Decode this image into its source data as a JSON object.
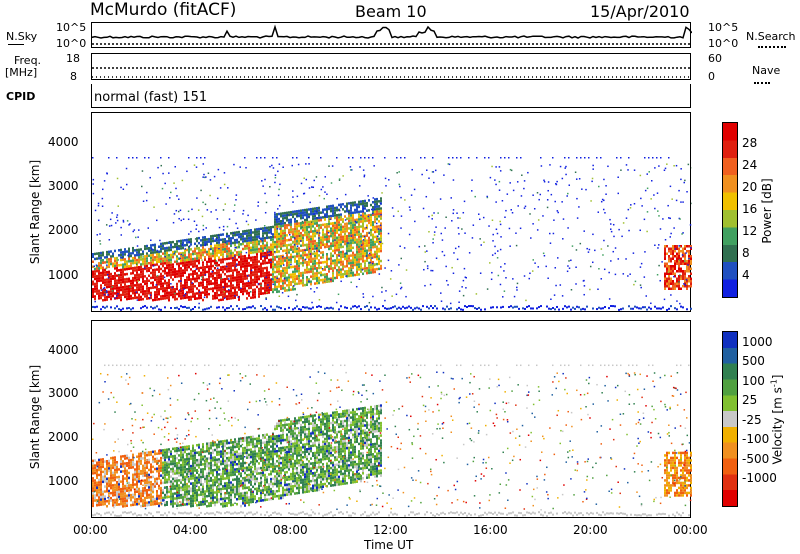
{
  "header": {
    "station": "McMurdo (fitACF)",
    "beam": "Beam 10",
    "date": "15/Apr/2010"
  },
  "top_panels": {
    "nsky_label": "N.Sky",
    "nsky_ticks": [
      "10^5",
      "10^0"
    ],
    "nsky_right_ticks": [
      "10^5",
      "10^0"
    ],
    "nsearch_label": "N.Search",
    "freq_label": "Freq.",
    "freq_unit": "[MHz]",
    "freq_ticks": [
      "18",
      "8"
    ],
    "nave_ticks": [
      "60",
      "0"
    ],
    "nave_label": "Nave",
    "cpid_label": "CPID",
    "cpid_value": "normal (fast) 151"
  },
  "chart_data": [
    {
      "type": "heatmap",
      "name": "power",
      "ylabel": "Slant Range [km]",
      "yticks": [
        1000,
        2000,
        3000,
        4000
      ],
      "ylim": [
        180,
        4700
      ],
      "xlim": [
        0,
        24
      ],
      "colorbar": {
        "label": "Power [dB]",
        "ticks": [
          "4",
          "8",
          "12",
          "16",
          "20",
          "24",
          "28"
        ],
        "colors": [
          "#1020e0",
          "#2050c0",
          "#307050",
          "#40a060",
          "#a0c030",
          "#f0c000",
          "#f09020",
          "#f06020",
          "#e02010",
          "#e00000"
        ]
      }
    },
    {
      "type": "heatmap",
      "name": "velocity",
      "ylabel": "Slant Range [km]",
      "yticks": [
        1000,
        2000,
        3000,
        4000
      ],
      "ylim": [
        180,
        4700
      ],
      "xlim": [
        0,
        24
      ],
      "xlabel": "Time UT",
      "xticks": [
        "00:00",
        "04:00",
        "08:00",
        "12:00",
        "16:00",
        "20:00",
        "00:00"
      ],
      "colorbar": {
        "label": "Velocity [m s",
        "label_sup": "-1",
        "label_end": "]",
        "ticks": [
          "1000",
          "500",
          "100",
          "25",
          "-25",
          "-100",
          "-500",
          "-1000"
        ],
        "colors": [
          "#1030c0",
          "#2060a0",
          "#308050",
          "#50a040",
          "#80c030",
          "#c8c8c8",
          "#f0b000",
          "#f09020",
          "#f06010",
          "#e03010",
          "#e00000"
        ]
      }
    }
  ]
}
